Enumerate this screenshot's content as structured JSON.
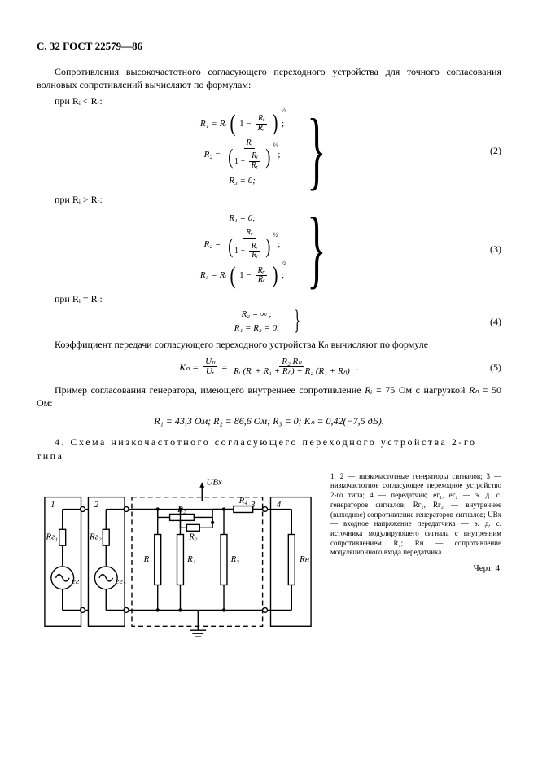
{
  "page_header": "С. 32 ГОСТ 22579—86",
  "p1": "Сопротивления высокочастотного согласующего переходного устройства для точного согласования волновых сопротивлений вычисляют по формулам:",
  "cond1": "при Rᵢ < Rᵣ:",
  "eq2": {
    "l1_lhs": "R₁ =",
    "l1_factor": "Rᵢ",
    "l1_inner_num": "Rᵢ",
    "l1_inner_den": "Rᵣ",
    "l1_exp": "½",
    "l2_lhs": "R₂ =",
    "l2_num": "Rᵢ",
    "l2_den_lead": "1 −",
    "l2_den_num": "Rᵢ",
    "l2_den_den": "Rᵣ",
    "l2_exp": "½",
    "l3": "R₃ = 0;",
    "num": "(2)"
  },
  "cond2": "при Rᵢ > Rᵣ:",
  "eq3": {
    "l1": "R₁ = 0;",
    "l2_lhs": "R₂ =",
    "l2_num": "Rᵣ",
    "l2_den_lead": "1 −",
    "l2_den_num": "Rᵣ",
    "l2_den_den": "Rᵢ",
    "l2_exp": "½",
    "l3_lhs": "R₃ =",
    "l3_factor": "Rᵢ",
    "l3_inner_lead": "1 −",
    "l3_inner_num": "Rᵣ",
    "l3_inner_den": "Rᵢ",
    "l3_exp": "½",
    "num": "(3)"
  },
  "cond3": "при Rᵢ = Rᵣ:",
  "eq4": {
    "l1": "R₂ = ∞ ;",
    "l2": "R₁ = R₃ = 0.",
    "num": "(4)"
  },
  "p2": "Коэффициент передачи согласующего переходного устройства Кₙ вычисляют по формуле",
  "eq5": {
    "lhs": "Кₙ =",
    "frac1_num": "Uₙ",
    "frac1_den": "Uᵣ",
    "eq": "=",
    "frac2_num": "R₂ Rₙ",
    "frac2_den": "Rᵢ (Rᵢ + R₁ + Rₙ) + R₂ (R₁ + Rₙ)",
    "num": "(5)"
  },
  "p3_a": "Пример согласования генератора, имеющего внутреннее сопротивление ",
  "p3_b": "Rᵢ",
  "p3_c": " = 75 Ом с нагрузкой ",
  "p3_d": "Rₙ",
  "p3_e": " = 50 Ом:",
  "example": "R₁ = 43,3 Ом; R₂ = 86,6 Ом; R₃ = 0; Кₙ = 0,42(−7,5 дБ).",
  "section4": "4. Схема низкочастотного согласующего переходного устройства 2-го типа",
  "figure": {
    "box1": "1",
    "box2": "2",
    "box3": "3",
    "box4": "4",
    "Uv": "UВх",
    "R2": "R₂",
    "R2p": "R₂",
    "R4": "R₄",
    "RG1": "Rг₁",
    "eG1": "eг₁",
    "RG2": "Rг₂",
    "eG2": "eг₂",
    "R1": "R₁",
    "R1p": "R₁",
    "R3": "R₃",
    "RH": "Rн",
    "gnd": "┴",
    "stroke": "#000000",
    "stroke_w": 1.4,
    "dash": "6,4",
    "font": "11px"
  },
  "caption": "1, 2 — низкочастотные генераторы сигналов; 3 — низкочастотное согласующее переходное устройство 2-го типа; 4 — передатчик; eг₁, eг₂ — э. д. с. генераторов сигналов; Rг₁, Rг₂ — внутреннее (выходное) сопротивление генераторов сигналов; UВх — входное напряжение передатчика — э. д. с. источника модулирующего сигнала с внутренним сопротивлением R₄; Rн — сопротивление модуляционного входа передатчика",
  "fignum": "Черт. 4"
}
